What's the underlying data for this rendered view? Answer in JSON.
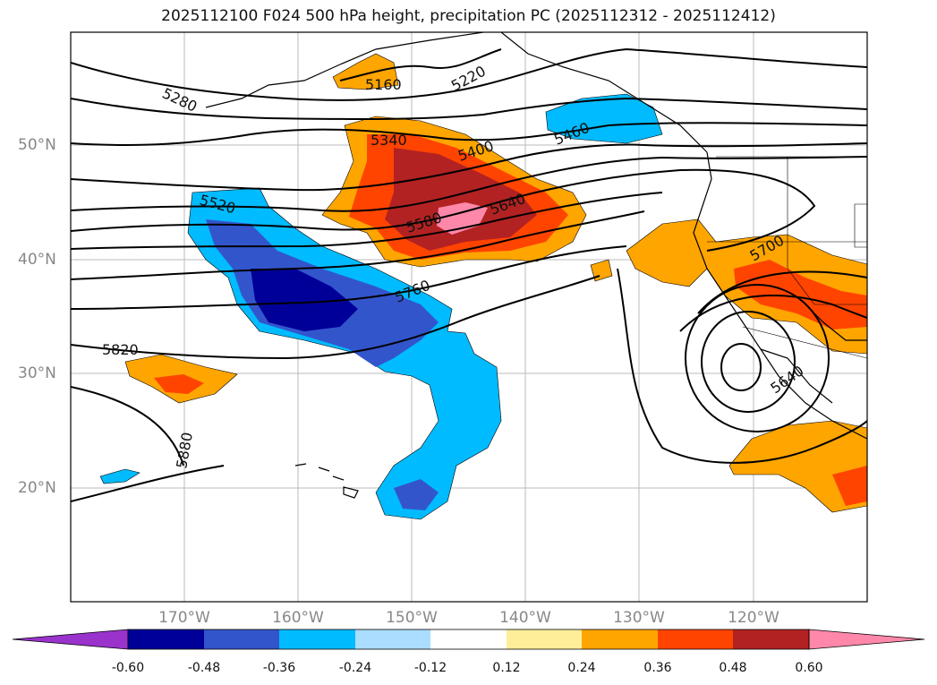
{
  "title": "2025112100 F024 500 hPa height, precipitation PC (2025112312 - 2025112412)",
  "lat_labels": [
    "50°N",
    "40°N",
    "30°N",
    "20°N"
  ],
  "lon_labels": [
    "170°W",
    "160°W",
    "150°W",
    "140°W",
    "130°W",
    "120°W"
  ],
  "contour_labels": [
    "5160",
    "5220",
    "5280",
    "5340",
    "5400",
    "5460",
    "5520",
    "5580",
    "5640",
    "5760",
    "5700",
    "5820",
    "5880",
    "5640"
  ],
  "colorbar": {
    "ticks": [
      "-0.60",
      "-0.48",
      "-0.36",
      "-0.24",
      "-0.12",
      "0.12",
      "0.24",
      "0.36",
      "0.48",
      "0.60"
    ],
    "colors": [
      "#9933cc",
      "#000099",
      "#3355cc",
      "#00bbff",
      "#aaddff",
      "#ffffff",
      "#ffee99",
      "#ffa500",
      "#ff4400",
      "#b22222",
      "#ff88aa"
    ]
  }
}
